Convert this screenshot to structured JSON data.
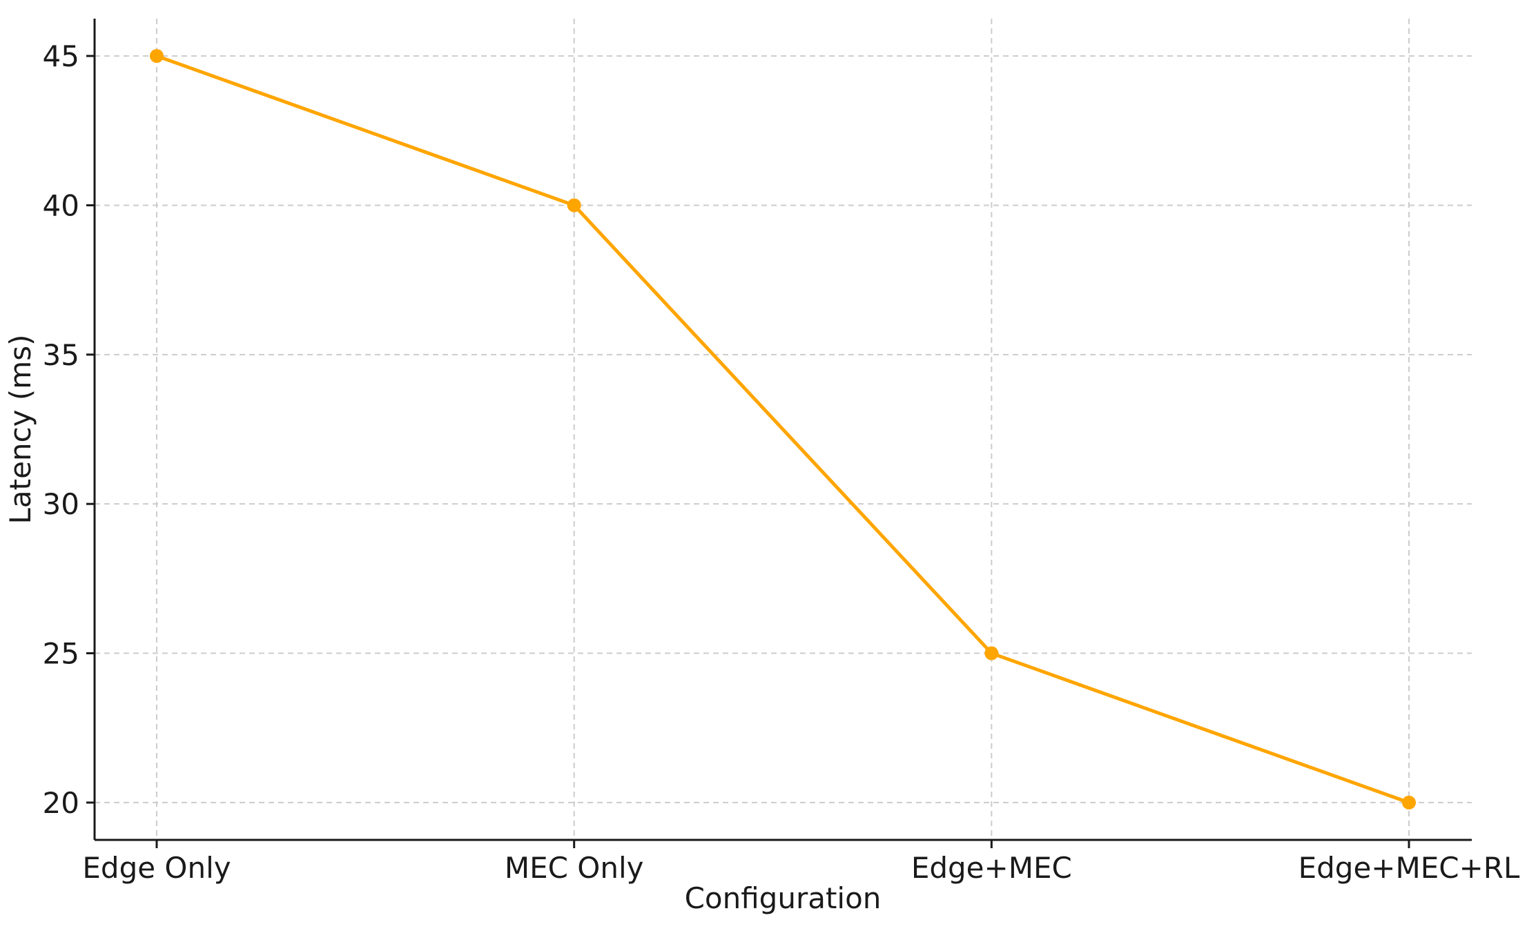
{
  "chart_data": {
    "type": "line",
    "title": "",
    "xlabel": "Configuration",
    "ylabel": "Latency (ms)",
    "categories": [
      "Edge Only",
      "MEC Only",
      "Edge+MEC",
      "Edge+MEC+RL"
    ],
    "series": [
      {
        "values": [
          45,
          40,
          25,
          20
        ],
        "color": "#FFA500"
      }
    ],
    "yticks": [
      20,
      25,
      30,
      35,
      40,
      45
    ],
    "ylim": [
      18.75,
      46.25
    ],
    "grid": true,
    "marker": "circle"
  }
}
